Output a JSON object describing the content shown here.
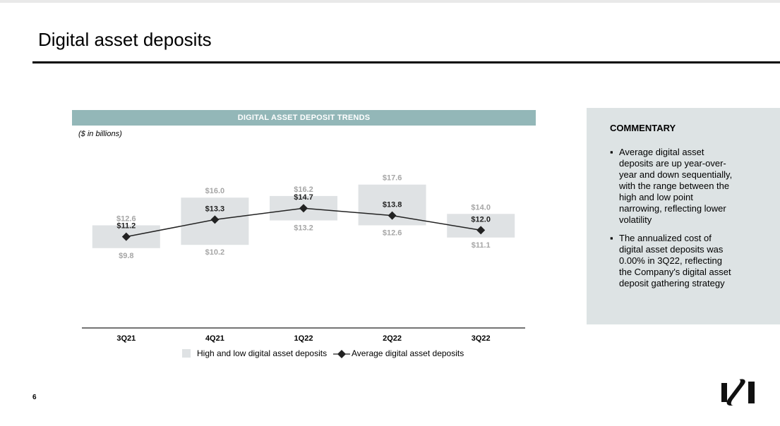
{
  "page": {
    "title": "Digital asset deposits",
    "page_number": "6"
  },
  "chart_header": "DIGITAL ASSET DEPOSIT TRENDS",
  "units_note": "($ in billions)",
  "legend": {
    "range_label": "High and low digital asset deposits",
    "avg_label": "Average digital asset deposits"
  },
  "commentary": {
    "title": "COMMENTARY",
    "bullets": [
      "Average digital asset deposits are up year-over-year and down sequentially, with the range between the high and low point narrowing, reflecting lower volatility",
      "The annualized cost of digital asset deposits was 0.00% in 3Q22, reflecting the Company's digital asset deposit gathering strategy"
    ]
  },
  "logo": {
    "icon": "brand-logo-icon"
  },
  "colors": {
    "header_band": "#93b7b8",
    "range_bar": "#dfe2e4",
    "range_label": "#a6a6a6",
    "avg_line": "#222222",
    "commentary_bg": "#dde3e4"
  },
  "chart_data": {
    "type": "line",
    "categories": [
      "3Q21",
      "4Q21",
      "1Q22",
      "2Q22",
      "3Q22"
    ],
    "series": [
      {
        "name": "High and low digital asset deposits",
        "kind": "range",
        "high": [
          12.6,
          16.0,
          16.2,
          17.6,
          14.0
        ],
        "low": [
          9.8,
          10.2,
          13.2,
          12.6,
          11.1
        ]
      },
      {
        "name": "Average digital asset deposits",
        "kind": "line",
        "marker": "diamond",
        "values": [
          11.2,
          13.3,
          14.7,
          13.8,
          12.0
        ]
      }
    ],
    "high_labels": [
      "$12.6",
      "$16.0",
      "$16.2",
      "$17.6",
      "$14.0"
    ],
    "low_labels": [
      "$9.8",
      "$10.2",
      "$13.2",
      "$12.6",
      "$11.1"
    ],
    "avg_labels": [
      "$11.2",
      "$13.3",
      "$14.7",
      "$13.8",
      "$12.0"
    ],
    "ylim": [
      0,
      18
    ],
    "grid": false,
    "legend_position": "bottom"
  }
}
